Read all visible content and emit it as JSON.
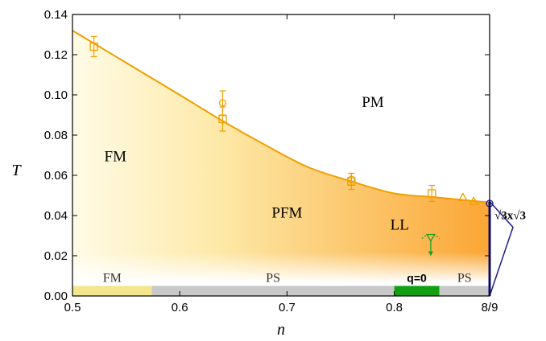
{
  "chart_data": {
    "type": "line",
    "xlabel": "n",
    "ylabel": "T",
    "xlim": [
      0.5,
      0.8889
    ],
    "ylim": [
      0,
      0.14
    ],
    "x_ticks": [
      {
        "value": 0.5,
        "label": "0.5"
      },
      {
        "value": 0.6,
        "label": "0.6"
      },
      {
        "value": 0.7,
        "label": "0.7"
      },
      {
        "value": 0.8,
        "label": "0.8"
      },
      {
        "value": 0.8889,
        "label": "8/9"
      }
    ],
    "y_ticks": [
      {
        "value": 0.0,
        "label": "0.00"
      },
      {
        "value": 0.02,
        "label": "0.02"
      },
      {
        "value": 0.04,
        "label": "0.04"
      },
      {
        "value": 0.06,
        "label": "0.06"
      },
      {
        "value": 0.08,
        "label": "0.08"
      },
      {
        "value": 0.1,
        "label": "0.10"
      },
      {
        "value": 0.12,
        "label": "0.12"
      },
      {
        "value": 0.14,
        "label": "0.14"
      }
    ],
    "boundary_curve": {
      "color": "#f0a000",
      "x": [
        0.5,
        0.55,
        0.6,
        0.64,
        0.68,
        0.72,
        0.76,
        0.8,
        0.84,
        0.8889
      ],
      "y": [
        0.132,
        0.116,
        0.1,
        0.087,
        0.075,
        0.064,
        0.057,
        0.051,
        0.049,
        0.0465
      ]
    },
    "points": [
      {
        "marker": "square",
        "x": 0.52,
        "y": 0.124,
        "err": 0.005
      },
      {
        "marker": "square",
        "x": 0.64,
        "y": 0.088,
        "err": 0.006
      },
      {
        "marker": "circle",
        "x": 0.64,
        "y": 0.096,
        "err": 0.006
      },
      {
        "marker": "square",
        "x": 0.76,
        "y": 0.057,
        "err": 0.004
      },
      {
        "marker": "circle",
        "x": 0.76,
        "y": 0.058,
        "err": 0.003
      },
      {
        "marker": "square",
        "x": 0.835,
        "y": 0.051,
        "err": 0.004
      },
      {
        "marker": "triangle",
        "x": 0.864,
        "y": 0.049,
        "err": 0
      },
      {
        "marker": "triangle",
        "x": 0.874,
        "y": 0.047,
        "err": 0
      },
      {
        "marker": "circle",
        "x": 0.8889,
        "y": 0.046,
        "err": 0
      }
    ],
    "ll_marker": {
      "x": 0.834,
      "y": 0.029,
      "color": "#22a022"
    },
    "region_labels": [
      {
        "text": "PM",
        "x": 0.78,
        "y": 0.094
      },
      {
        "text": "FM",
        "x": 0.54,
        "y": 0.067
      },
      {
        "text": "PFM",
        "x": 0.7,
        "y": 0.039
      },
      {
        "text": "LL",
        "x": 0.805,
        "y": 0.033
      }
    ],
    "ground_state_bar": {
      "y_from": 0.0,
      "y_to": 0.005,
      "segments": [
        {
          "label": "FM",
          "from": 0.5,
          "to": 0.574,
          "color": "#f4e68c"
        },
        {
          "label": "PS",
          "from": 0.574,
          "to": 0.8,
          "color": "#c8c8c8"
        },
        {
          "label": "q=0",
          "from": 0.8,
          "to": 0.842,
          "color": "#12a012"
        },
        {
          "label": "PS",
          "from": 0.842,
          "to": 0.8889,
          "color": "#c8c8c8"
        }
      ]
    },
    "sqrt3_annotation": {
      "text": "√3x√3",
      "color": "#1c1c8c",
      "x": 0.8889,
      "y_from": 0.0,
      "y_to": 0.047
    },
    "fill_colors": {
      "left": "#fffbe6",
      "right": "#fba634"
    }
  }
}
